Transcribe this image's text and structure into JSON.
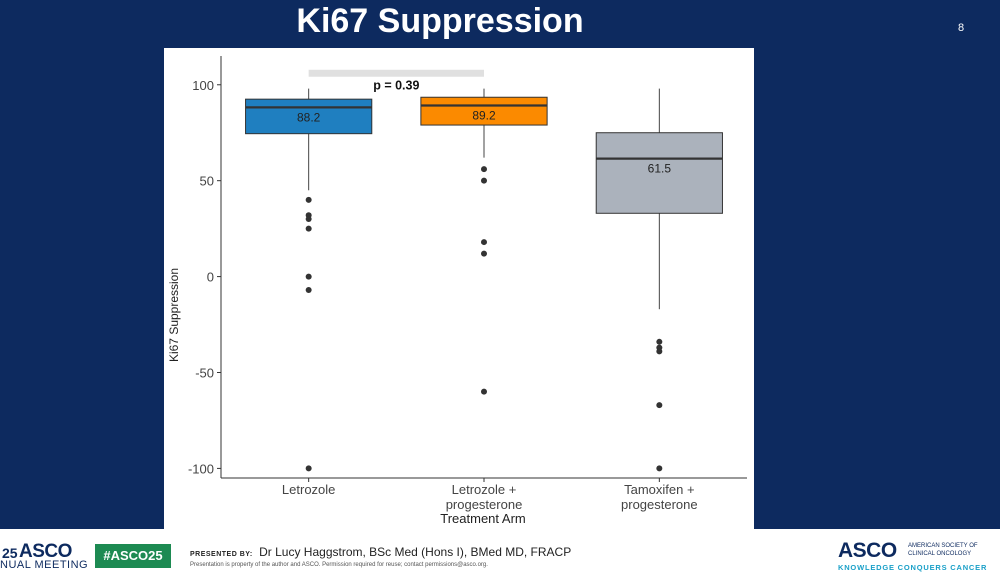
{
  "slide": {
    "title": "Ki67 Suppression",
    "page_number": "8"
  },
  "chart_data": {
    "type": "box",
    "xlabel": "Treatment Arm",
    "ylabel": "Ki67 Suppression",
    "ylim": [
      -105,
      115
    ],
    "yticks": [
      -100,
      -50,
      0,
      50,
      100
    ],
    "grid": false,
    "categories": [
      {
        "label_lines": [
          "Letrozole"
        ],
        "color": "#1f7fc0",
        "q1": 74.5,
        "median": 88.2,
        "q3": 92.5,
        "whisker_low": 45,
        "whisker_high": 98,
        "median_label": "88.2",
        "outliers": [
          40,
          32,
          30,
          25,
          0,
          -7,
          -100
        ]
      },
      {
        "label_lines": [
          "Letrozole +",
          "progesterone"
        ],
        "color": "#fb8a00",
        "q1": 79,
        "median": 89.2,
        "q3": 93.5,
        "whisker_low": 62,
        "whisker_high": 98,
        "median_label": "89.2",
        "outliers": [
          56,
          50,
          18,
          12,
          -60
        ]
      },
      {
        "label_lines": [
          "Tamoxifen +",
          "progesterone"
        ],
        "color": "#abb2bc",
        "q1": 33,
        "median": 61.5,
        "q3": 75,
        "whisker_low": -17,
        "whisker_high": 98,
        "median_label": "61.5",
        "outliers": [
          -34,
          -37,
          -39,
          -67,
          -100
        ]
      }
    ],
    "annotation": {
      "text": "p = 0.39",
      "from_category": 0,
      "to_category": 1,
      "y": 106
    }
  },
  "footer": {
    "meeting_year": "25",
    "meeting_org": "ASCO",
    "meeting_sub": "NUAL MEETING",
    "hashtag": "#ASCO25",
    "presented_label": "PRESENTED BY:",
    "presenter": "Dr Lucy Haggstrom, BSc Med (Hons I), BMed MD, FRACP",
    "disclaimer": "Presentation is property of the author and ASCO. Permission required for reuse; contact permissions@asco.org.",
    "logo_name": "ASCO",
    "logo_org": "AMERICAN SOCIETY OF CLINICAL ONCOLOGY",
    "logo_tagline": "KNOWLEDGE CONQUERS CANCER"
  }
}
